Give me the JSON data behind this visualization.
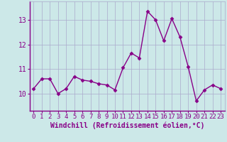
{
  "x": [
    0,
    1,
    2,
    3,
    4,
    5,
    6,
    7,
    8,
    9,
    10,
    11,
    12,
    13,
    14,
    15,
    16,
    17,
    18,
    19,
    20,
    21,
    22,
    23
  ],
  "y": [
    10.2,
    10.6,
    10.6,
    10.0,
    10.2,
    10.7,
    10.55,
    10.5,
    10.4,
    10.35,
    10.15,
    11.05,
    11.65,
    11.45,
    13.35,
    13.0,
    12.15,
    13.05,
    12.3,
    11.1,
    9.7,
    10.15,
    10.35,
    10.2
  ],
  "line_color": "#880088",
  "marker": "D",
  "markersize": 2.5,
  "linewidth": 1.0,
  "bg_color": "#cce8e8",
  "grid_color": "#aaaacc",
  "xlabel": "Windchill (Refroidissement éolien,°C)",
  "xlabel_fontsize": 7,
  "tick_fontsize": 6.5,
  "ytick_fontsize": 7,
  "yticks": [
    10,
    11,
    12,
    13
  ],
  "ylim": [
    9.3,
    13.75
  ],
  "xlim": [
    -0.5,
    23.5
  ],
  "xtick_labels": [
    "0",
    "1",
    "2",
    "3",
    "4",
    "5",
    "6",
    "7",
    "8",
    "9",
    "10",
    "11",
    "12",
    "13",
    "14",
    "15",
    "16",
    "17",
    "18",
    "19",
    "20",
    "21",
    "22",
    "23"
  ]
}
